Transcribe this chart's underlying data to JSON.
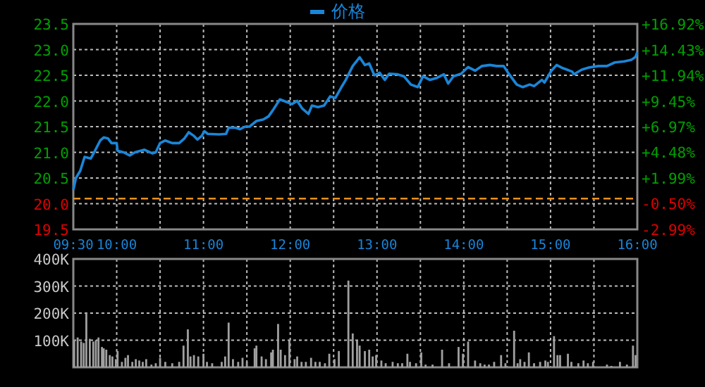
{
  "chart_data": [
    {
      "type": "line",
      "legend": "top",
      "grid": true,
      "xlim": [
        9.5,
        16
      ],
      "ylim": [
        19.5,
        23.5
      ],
      "y2lim": [
        -2.99,
        16.92
      ],
      "xticks": [
        {
          "value": 9.5,
          "label": "09:30"
        },
        {
          "value": 10,
          "label": "10:00"
        },
        {
          "value": 10.5,
          "label": null
        },
        {
          "value": 11,
          "label": "11:00"
        },
        {
          "value": 11.5,
          "label": null
        },
        {
          "value": 12,
          "label": "12:00"
        },
        {
          "value": 12.5,
          "label": null
        },
        {
          "value": 13,
          "label": "13:00"
        },
        {
          "value": 13.5,
          "label": null
        },
        {
          "value": 14,
          "label": "14:00"
        },
        {
          "value": 14.5,
          "label": null
        },
        {
          "value": 15,
          "label": "15:00"
        },
        {
          "value": 15.5,
          "label": null
        },
        {
          "value": 16,
          "label": "16:00"
        }
      ],
      "yticks": [
        19.5,
        {
          "value": 20,
          "label": "20.0"
        },
        20.5,
        {
          "value": 21,
          "label": "21.0"
        },
        21.5,
        {
          "value": 22,
          "label": "22.0"
        },
        22.5,
        {
          "value": 23,
          "label": "23.0"
        },
        23.5
      ],
      "y2ticks": [
        {
          "value": -2.99,
          "label": "-2.99%"
        },
        {
          "value": -0.5,
          "label": "-0.50%"
        },
        {
          "value": 1.99,
          "label": "+1.99%"
        },
        {
          "value": 4.48,
          "label": "+4.48%"
        },
        {
          "value": 6.97,
          "label": "+6.97%"
        },
        {
          "value": 9.45,
          "label": "+9.45%"
        },
        {
          "value": 11.94,
          "label": "+11.94%"
        },
        {
          "value": 14.43,
          "label": "+14.43%"
        },
        {
          "value": 16.92,
          "label": "+16.92%"
        }
      ],
      "ref_lines": [
        {
          "axis": "y",
          "value": 20.1,
          "color": "#e8901c",
          "line_style": "dashed"
        }
      ],
      "x": [
        9.5,
        9.53,
        9.58,
        9.63,
        9.7,
        9.74,
        9.81,
        9.85,
        9.9,
        9.94,
        10.0,
        10.01,
        10.08,
        10.15,
        10.21,
        10.32,
        10.41,
        10.45,
        10.5,
        10.56,
        10.64,
        10.72,
        10.78,
        10.83,
        10.89,
        10.93,
        10.98,
        11.01,
        11.05,
        11.18,
        11.26,
        11.29,
        11.37,
        11.42,
        11.48,
        11.53,
        11.61,
        11.69,
        11.75,
        11.8,
        11.88,
        11.96,
        12.02,
        12.08,
        12.14,
        12.21,
        12.25,
        12.32,
        12.39,
        12.46,
        12.52,
        12.59,
        12.64,
        12.72,
        12.8,
        12.86,
        12.91,
        12.97,
        13.03,
        13.09,
        13.14,
        13.23,
        13.31,
        13.39,
        13.47,
        13.53,
        13.61,
        13.69,
        13.77,
        13.82,
        13.88,
        13.97,
        14.05,
        14.13,
        14.21,
        14.3,
        14.38,
        14.46,
        14.51,
        14.61,
        14.68,
        14.76,
        14.81,
        14.9,
        14.93,
        15.01,
        15.07,
        15.14,
        15.19,
        15.25,
        15.27,
        15.36,
        15.44,
        15.55,
        15.65,
        15.74,
        15.85,
        15.93,
        15.98,
        16.0
      ],
      "series": [
        {
          "name": "价格",
          "color": "#1a86d8",
          "values": [
            20.27,
            20.5,
            20.64,
            20.91,
            20.88,
            21.0,
            21.23,
            21.29,
            21.27,
            21.18,
            21.18,
            21.03,
            21.0,
            20.94,
            21.0,
            21.05,
            20.98,
            21.0,
            21.18,
            21.23,
            21.18,
            21.18,
            21.27,
            21.39,
            21.32,
            21.25,
            21.32,
            21.41,
            21.36,
            21.35,
            21.36,
            21.48,
            21.48,
            21.45,
            21.5,
            21.5,
            21.61,
            21.64,
            21.7,
            21.82,
            22.03,
            21.98,
            21.94,
            22.0,
            21.85,
            21.75,
            21.91,
            21.88,
            21.91,
            22.09,
            22.06,
            22.27,
            22.41,
            22.68,
            22.85,
            22.7,
            22.73,
            22.5,
            22.55,
            22.41,
            22.53,
            22.52,
            22.48,
            22.32,
            22.27,
            22.48,
            22.41,
            22.45,
            22.52,
            22.34,
            22.48,
            22.53,
            22.66,
            22.59,
            22.68,
            22.7,
            22.68,
            22.68,
            22.55,
            22.32,
            22.27,
            22.32,
            22.29,
            22.41,
            22.36,
            22.59,
            22.7,
            22.64,
            22.61,
            22.57,
            22.52,
            22.61,
            22.65,
            22.68,
            22.68,
            22.75,
            22.77,
            22.8,
            22.86,
            22.95
          ]
        }
      ]
    },
    {
      "type": "bar",
      "grid": true,
      "tick_labels": "y",
      "xlim": [
        9.5,
        16
      ],
      "ylim": [
        0,
        400
      ],
      "xticks": [
        {
          "value": 9.5,
          "label": null
        },
        {
          "value": 10,
          "label": null
        },
        {
          "value": 10.5,
          "label": null
        },
        {
          "value": 11,
          "label": null
        },
        {
          "value": 11.5,
          "label": null
        },
        {
          "value": 12,
          "label": null
        },
        {
          "value": 12.5,
          "label": null
        },
        {
          "value": 13,
          "label": null
        },
        {
          "value": 13.5,
          "label": null
        },
        {
          "value": 14,
          "label": null
        },
        {
          "value": 14.5,
          "label": null
        },
        {
          "value": 15,
          "label": null
        },
        {
          "value": 15.5,
          "label": null
        },
        {
          "value": 16,
          "label": null
        }
      ],
      "yticks": [
        {
          "value": 100,
          "label": "100K"
        },
        {
          "value": 200,
          "label": "200K"
        },
        {
          "value": 300,
          "label": "300K"
        },
        {
          "value": 400,
          "label": "400K"
        }
      ],
      "x": [
        9.51,
        9.55,
        9.59,
        9.62,
        9.65,
        9.69,
        9.73,
        9.76,
        9.79,
        9.83,
        9.85,
        9.88,
        9.92,
        9.95,
        9.99,
        10.01,
        10.06,
        10.1,
        10.13,
        10.18,
        10.22,
        10.26,
        10.3,
        10.34,
        10.4,
        10.45,
        10.5,
        10.56,
        10.64,
        10.72,
        10.77,
        10.82,
        10.85,
        10.89,
        10.94,
        11.0,
        11.04,
        11.1,
        11.21,
        11.25,
        11.29,
        11.34,
        11.4,
        11.45,
        11.5,
        11.59,
        11.61,
        11.67,
        11.72,
        11.78,
        11.8,
        11.86,
        11.89,
        11.94,
        11.99,
        12.05,
        12.08,
        12.13,
        12.18,
        12.24,
        12.29,
        12.34,
        12.4,
        12.45,
        12.51,
        12.56,
        12.67,
        12.72,
        12.77,
        12.8,
        12.86,
        12.91,
        12.95,
        12.99,
        13.05,
        13.1,
        13.18,
        13.24,
        13.29,
        13.35,
        13.38,
        13.45,
        13.51,
        13.56,
        13.64,
        13.75,
        13.83,
        13.94,
        13.99,
        14.05,
        14.13,
        14.19,
        14.24,
        14.29,
        14.35,
        14.43,
        14.48,
        14.58,
        14.62,
        14.65,
        14.7,
        14.75,
        14.81,
        14.88,
        14.94,
        14.97,
        15.04,
        15.08,
        15.11,
        15.2,
        15.24,
        15.32,
        15.38,
        15.43,
        15.49,
        15.65,
        15.7,
        15.8,
        15.88,
        15.95,
        15.98
      ],
      "series": [
        {
          "color": "#a0a0a0",
          "values": [
            100,
            110,
            95,
            90,
            200,
            105,
            95,
            100,
            110,
            75,
            70,
            65,
            45,
            40,
            30,
            60,
            20,
            35,
            45,
            20,
            30,
            25,
            20,
            30,
            10,
            15,
            35,
            20,
            15,
            20,
            80,
            140,
            40,
            45,
            40,
            50,
            20,
            15,
            20,
            40,
            165,
            30,
            20,
            35,
            20,
            70,
            80,
            40,
            30,
            55,
            65,
            160,
            65,
            45,
            100,
            30,
            40,
            20,
            20,
            35,
            20,
            20,
            15,
            50,
            30,
            60,
            320,
            125,
            100,
            80,
            60,
            65,
            40,
            45,
            25,
            15,
            20,
            15,
            15,
            50,
            20,
            15,
            55,
            10,
            10,
            65,
            15,
            75,
            50,
            95,
            25,
            15,
            10,
            10,
            20,
            45,
            15,
            135,
            15,
            30,
            20,
            55,
            15,
            20,
            25,
            20,
            115,
            45,
            45,
            50,
            20,
            15,
            25,
            15,
            20,
            10,
            5,
            20,
            10,
            80,
            45
          ]
        }
      ]
    }
  ]
}
